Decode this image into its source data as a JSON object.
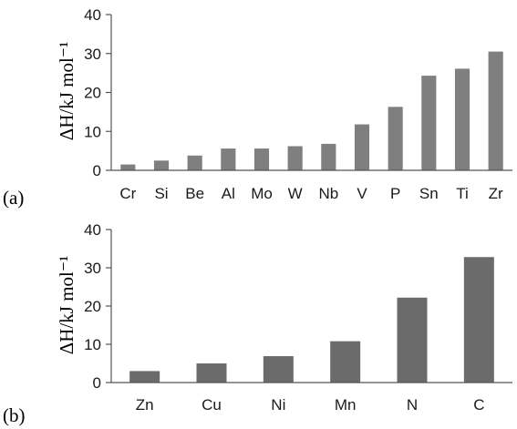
{
  "chart_data": [
    {
      "type": "bar",
      "panel_label": "(a)",
      "ylabel": "ΔH/kJ mol⁻¹",
      "categories": [
        "Cr",
        "Si",
        "Be",
        "Al",
        "Mo",
        "W",
        "Nb",
        "V",
        "P",
        "Sn",
        "Ti",
        "Zr"
      ],
      "values": [
        1.5,
        2.5,
        3.8,
        5.6,
        5.6,
        6.2,
        6.8,
        11.8,
        16.3,
        24.3,
        26.1,
        30.5
      ],
      "ylim": [
        0,
        40
      ],
      "yticks": [
        "0",
        "10",
        "20",
        "30",
        "40"
      ],
      "grid": false,
      "bar_color": "#7f7f7f"
    },
    {
      "type": "bar",
      "panel_label": "(b)",
      "ylabel": "ΔH/kJ mol⁻¹",
      "categories": [
        "Zn",
        "Cu",
        "Ni",
        "Mn",
        "N",
        "C"
      ],
      "values": [
        3.0,
        5.0,
        6.9,
        10.8,
        22.2,
        32.8
      ],
      "ylim": [
        0,
        40
      ],
      "yticks": [
        "0",
        "10",
        "20",
        "30",
        "40"
      ],
      "grid": false,
      "bar_color": "#6b6b6b"
    }
  ]
}
